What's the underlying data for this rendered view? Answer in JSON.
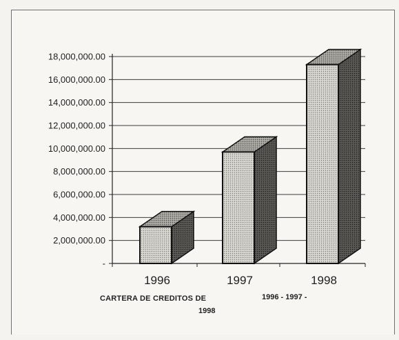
{
  "chart_data": {
    "type": "bar",
    "style": "3d-columns",
    "categories": [
      "1996",
      "1997",
      "1998"
    ],
    "values": [
      3200000,
      9700000,
      17300000
    ],
    "ylim": [
      0,
      18000000
    ],
    "yticks": [
      {
        "value": 0,
        "label": "-"
      },
      {
        "value": 2000000,
        "label": "2,000,000.00"
      },
      {
        "value": 4000000,
        "label": "4,000,000.00"
      },
      {
        "value": 6000000,
        "label": "6,000,000.00"
      },
      {
        "value": 8000000,
        "label": "8,000,000.00"
      },
      {
        "value": 10000000,
        "label": "10,000,000.00"
      },
      {
        "value": 12000000,
        "label": "12,000,000.00"
      },
      {
        "value": 14000000,
        "label": "14,000,000.00"
      },
      {
        "value": 16000000,
        "label": "16,000,000.00"
      },
      {
        "value": 18000000,
        "label": "18,000,000.00"
      }
    ],
    "grid": true,
    "legend": "none",
    "caption_left": "CARTERA DE CREDITOS DE",
    "caption_right": "1996 - 1997 -",
    "caption_year": "1998",
    "colors": {
      "front": "#c9c8c2",
      "top": "#a19f99",
      "side": "#4c4b48",
      "gridline": "#3a3a3a"
    }
  }
}
